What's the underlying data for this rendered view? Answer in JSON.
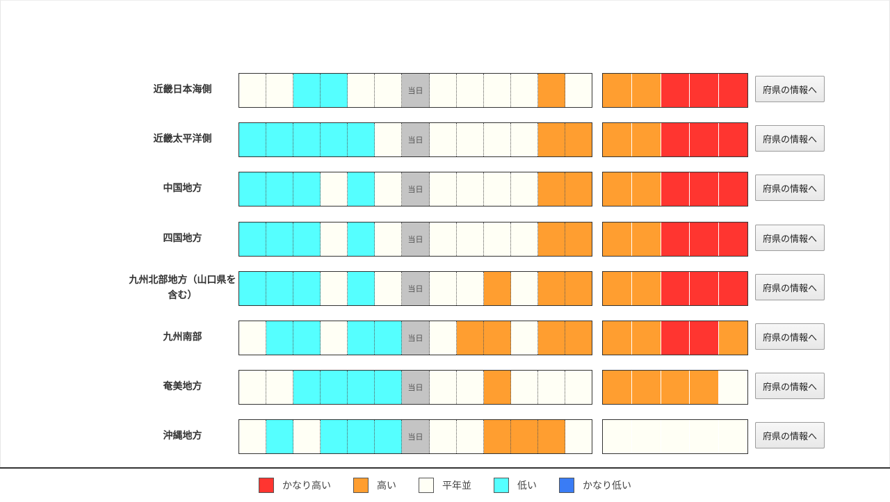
{
  "colors": {
    "veryHigh": "#ff3530",
    "high": "#ff9e30",
    "normal": "#fffff5",
    "low": "#55ffff",
    "veryLow": "#3a7cf5",
    "today": "#c4c4c4"
  },
  "today_label": "当日",
  "regions": [
    {
      "name": "近畿日本海側",
      "daily": [
        "N",
        "N",
        "L",
        "L",
        "N",
        "N",
        "T",
        "N",
        "N",
        "N",
        "N",
        "H",
        "N"
      ],
      "weekly": [
        "H",
        "H",
        "VH",
        "VH",
        "VH"
      ],
      "button": "府県の情報へ"
    },
    {
      "name": "近畿太平洋側",
      "daily": [
        "L",
        "L",
        "L",
        "L",
        "L",
        "N",
        "T",
        "N",
        "N",
        "N",
        "N",
        "H",
        "H"
      ],
      "weekly": [
        "H",
        "H",
        "VH",
        "VH",
        "VH"
      ],
      "button": "府県の情報へ"
    },
    {
      "name": "中国地方",
      "daily": [
        "L",
        "L",
        "L",
        "N",
        "L",
        "N",
        "T",
        "N",
        "N",
        "N",
        "N",
        "H",
        "H"
      ],
      "weekly": [
        "H",
        "H",
        "VH",
        "VH",
        "VH"
      ],
      "button": "府県の情報へ"
    },
    {
      "name": "四国地方",
      "daily": [
        "L",
        "L",
        "L",
        "N",
        "L",
        "N",
        "T",
        "N",
        "N",
        "N",
        "N",
        "H",
        "H"
      ],
      "weekly": [
        "H",
        "H",
        "VH",
        "VH",
        "VH"
      ],
      "button": "府県の情報へ"
    },
    {
      "name": "九州北部地方（山口県を含む）",
      "daily": [
        "L",
        "L",
        "L",
        "N",
        "L",
        "N",
        "T",
        "N",
        "N",
        "H",
        "N",
        "H",
        "H"
      ],
      "weekly": [
        "H",
        "H",
        "VH",
        "VH",
        "VH"
      ],
      "button": "府県の情報へ"
    },
    {
      "name": "九州南部",
      "daily": [
        "N",
        "L",
        "L",
        "N",
        "L",
        "L",
        "T",
        "N",
        "H",
        "H",
        "N",
        "H",
        "H"
      ],
      "weekly": [
        "H",
        "H",
        "VH",
        "VH",
        "H"
      ],
      "button": "府県の情報へ"
    },
    {
      "name": "奄美地方",
      "daily": [
        "N",
        "N",
        "L",
        "L",
        "L",
        "L",
        "T",
        "N",
        "N",
        "H",
        "N",
        "N",
        "N"
      ],
      "weekly": [
        "H",
        "H",
        "H",
        "H",
        "N"
      ],
      "button": "府県の情報へ"
    },
    {
      "name": "沖縄地方",
      "daily": [
        "N",
        "L",
        "N",
        "L",
        "L",
        "L",
        "T",
        "N",
        "N",
        "H",
        "H",
        "H",
        "N"
      ],
      "weekly": [
        "N",
        "N",
        "N",
        "N",
        "N"
      ],
      "button": "府県の情報へ"
    }
  ],
  "legend": [
    {
      "label": "かなり高い",
      "color": "#ff3530"
    },
    {
      "label": "高い",
      "color": "#ff9e30"
    },
    {
      "label": "平年並",
      "color": "#fffff5"
    },
    {
      "label": "低い",
      "color": "#55ffff"
    },
    {
      "label": "かなり低い",
      "color": "#3a7cf5"
    }
  ]
}
